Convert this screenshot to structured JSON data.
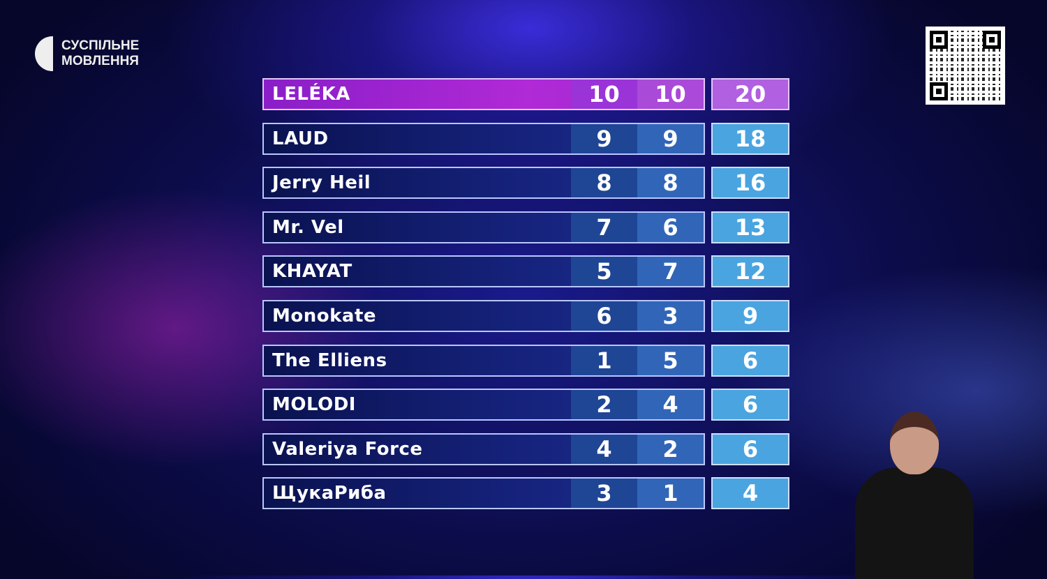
{
  "logo": {
    "line1": "СУСПІЛЬНЕ",
    "line2": "МОВЛЕННЯ"
  },
  "colors": {
    "leader": "#a42ad4",
    "row": "#16237d",
    "total": "#4aa4e0"
  },
  "scoreboard": [
    {
      "name": "LELÉKA",
      "jury": "10",
      "vote": "10",
      "total": "20"
    },
    {
      "name": "LAUD",
      "jury": "9",
      "vote": "9",
      "total": "18"
    },
    {
      "name": "Jerry Heil",
      "jury": "8",
      "vote": "8",
      "total": "16"
    },
    {
      "name": "Mr. Vel",
      "jury": "7",
      "vote": "6",
      "total": "13"
    },
    {
      "name": "KHAYAT",
      "jury": "5",
      "vote": "7",
      "total": "12"
    },
    {
      "name": "Monokate",
      "jury": "6",
      "vote": "3",
      "total": "9"
    },
    {
      "name": "The Elliens",
      "jury": "1",
      "vote": "5",
      "total": "6"
    },
    {
      "name": "MOLODI",
      "jury": "2",
      "vote": "4",
      "total": "6"
    },
    {
      "name": "Valeriya Force",
      "jury": "4",
      "vote": "2",
      "total": "6"
    },
    {
      "name": "ЩукаРиба",
      "jury": "3",
      "vote": "1",
      "total": "4"
    }
  ]
}
